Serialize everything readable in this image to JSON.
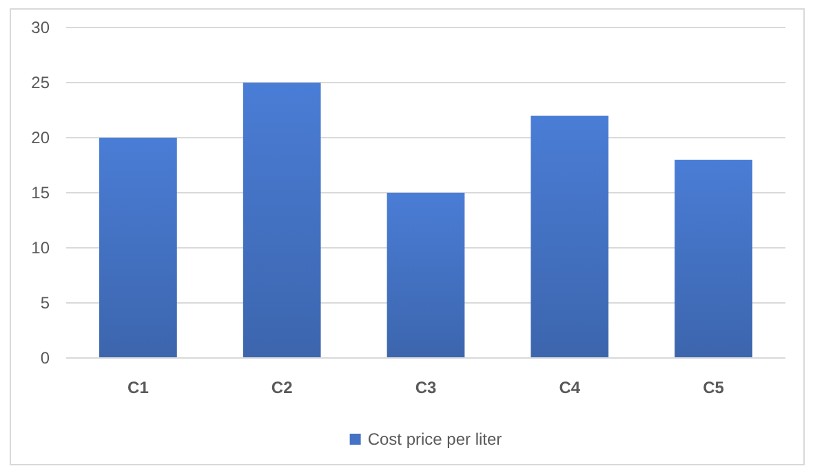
{
  "chart_data": {
    "type": "bar",
    "categories": [
      "C1",
      "C2",
      "C3",
      "C4",
      "C5"
    ],
    "series": [
      {
        "name": "Cost price per liter",
        "color": "#4472c4",
        "values": [
          20,
          25,
          15,
          22,
          18
        ]
      }
    ],
    "ylim": [
      0,
      30
    ],
    "yticks": [
      0,
      5,
      10,
      15,
      20,
      25,
      30
    ],
    "grid": "y",
    "legend": "bottom"
  }
}
